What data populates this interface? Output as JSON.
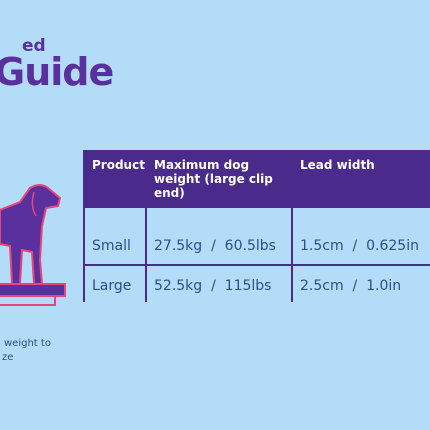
{
  "header": {
    "title_fragment": "ed",
    "title": "Guide"
  },
  "table": {
    "columns": [
      "Product",
      "Maximum dog weight (large clip end)",
      "Lead width"
    ],
    "rows": [
      [
        "Small",
        "27.5kg  /  60.5lbs",
        "1.5cm  /  0.625in"
      ],
      [
        "Large",
        "52.5kg  /  115lbs",
        "2.5cm  /  1.0in"
      ]
    ]
  },
  "note": [
    "weight to",
    "ze"
  ]
}
